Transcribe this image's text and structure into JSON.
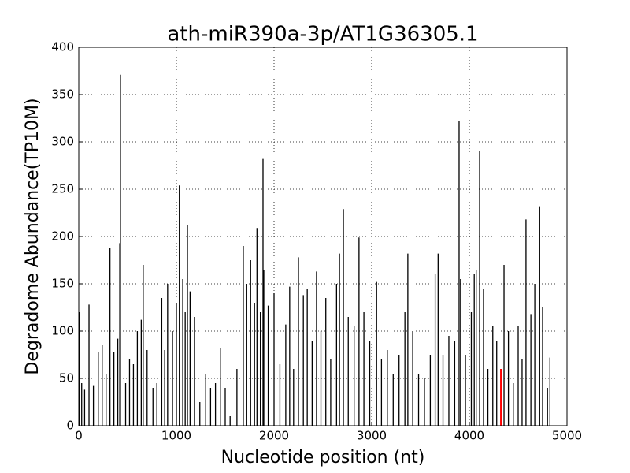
{
  "chart_data": {
    "type": "spike",
    "title": "ath-miR390a-3p/AT1G36305.1",
    "x_label": "Nucleotide position (nt)",
    "y_label": "Degradome Abundance(TP10M)",
    "xlim": [
      0,
      5000
    ],
    "ylim": [
      0,
      400
    ],
    "xticks": [
      0,
      1000,
      2000,
      3000,
      4000,
      5000
    ],
    "yticks": [
      0,
      50,
      100,
      150,
      200,
      250,
      300,
      350,
      400
    ],
    "grid": true,
    "series": [
      {
        "color": "#000000",
        "x": [
          8,
          30,
          60,
          105,
          150,
          200,
          240,
          280,
          320,
          360,
          400,
          420,
          427,
          480,
          520,
          560,
          600,
          640,
          660,
          700,
          760,
          800,
          850,
          880,
          910,
          960,
          1000,
          1030,
          1065,
          1090,
          1113,
          1140,
          1185,
          1240,
          1300,
          1350,
          1400,
          1450,
          1500,
          1550,
          1620,
          1685,
          1720,
          1760,
          1800,
          1825,
          1860,
          1887,
          1895,
          1940,
          2000,
          2060,
          2120,
          2160,
          2200,
          2250,
          2300,
          2340,
          2390,
          2435,
          2480,
          2530,
          2580,
          2640,
          2670,
          2710,
          2760,
          2820,
          2870,
          2920,
          2980,
          3050,
          3100,
          3160,
          3220,
          3280,
          3340,
          3370,
          3420,
          3480,
          3540,
          3600,
          3650,
          3680,
          3730,
          3790,
          3850,
          3895,
          3910,
          3960,
          4020,
          4050,
          4070,
          4105,
          4145,
          4190,
          4240,
          4280,
          4355,
          4400,
          4450,
          4500,
          4540,
          4580,
          4630,
          4670,
          4720,
          4750,
          4800,
          4825
        ],
        "values": [
          120,
          45,
          38,
          128,
          42,
          78,
          85,
          55,
          188,
          78,
          92,
          193,
          371,
          45,
          70,
          65,
          100,
          112,
          170,
          80,
          40,
          45,
          135,
          80,
          150,
          100,
          130,
          254,
          155,
          120,
          212,
          142,
          115,
          25,
          55,
          40,
          45,
          82,
          40,
          10,
          60,
          190,
          150,
          175,
          130,
          209,
          120,
          282,
          165,
          127,
          140,
          65,
          107,
          147,
          60,
          178,
          138,
          145,
          90,
          163,
          100,
          135,
          70,
          150,
          182,
          229,
          115,
          105,
          199,
          120,
          90,
          152,
          70,
          80,
          55,
          75,
          120,
          182,
          100,
          55,
          50,
          75,
          160,
          182,
          75,
          95,
          90,
          322,
          155,
          75,
          120,
          160,
          165,
          290,
          145,
          60,
          105,
          90,
          170,
          100,
          45,
          105,
          70,
          218,
          118,
          150,
          232,
          125,
          40,
          72
        ]
      },
      {
        "color": "#ff0000",
        "x": [
          4323
        ],
        "values": [
          60
        ]
      }
    ]
  }
}
